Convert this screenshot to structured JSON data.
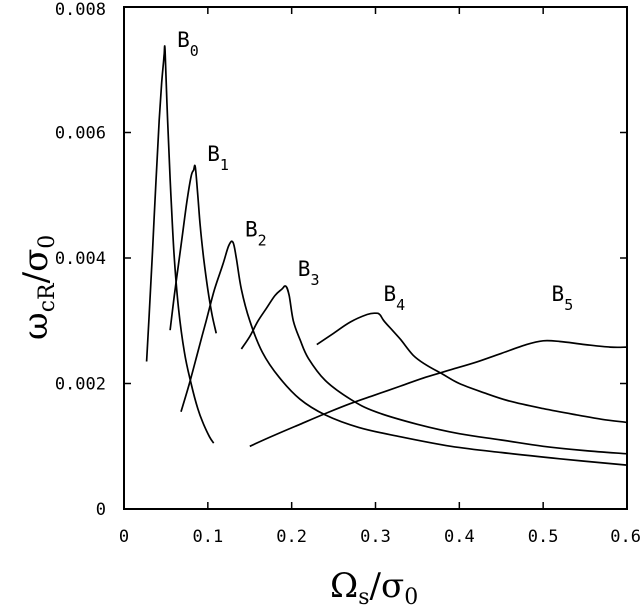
{
  "chart_data": {
    "type": "line",
    "title": "",
    "xlim": [
      0,
      0.6
    ],
    "ylim": [
      0,
      0.008
    ],
    "x_ticks": [
      "0",
      "0.1",
      "0.2",
      "0.3",
      "0.4",
      "0.5",
      "0.6"
    ],
    "y_ticks": [
      "0",
      "0.002",
      "0.004",
      "0.006",
      "0.008"
    ],
    "grid": false,
    "legend": "none",
    "x_axis_label": {
      "main": "Ω",
      "sub1": "s",
      "slash": "/",
      "main2": "σ",
      "sub2": "0"
    },
    "y_axis_label": {
      "main": "ω",
      "sub1": "cR",
      "slash": "/",
      "main2": "σ",
      "sub2": "0"
    },
    "series": [
      {
        "label_main": "B",
        "label_sub": "0",
        "x": [
          0.027,
          0.03,
          0.034,
          0.038,
          0.042,
          0.045,
          0.047,
          0.048,
          0.049,
          0.052,
          0.056,
          0.06,
          0.065,
          0.072,
          0.08,
          0.088,
          0.095,
          0.102,
          0.107
        ],
        "y": [
          0.00235,
          0.0031,
          0.0041,
          0.0052,
          0.0062,
          0.0068,
          0.0071,
          0.00725,
          0.0073,
          0.0062,
          0.005,
          0.004,
          0.0032,
          0.0025,
          0.002,
          0.0016,
          0.00135,
          0.00115,
          0.00105
        ]
      },
      {
        "label_main": "B",
        "label_sub": "1",
        "x": [
          0.055,
          0.06,
          0.065,
          0.07,
          0.075,
          0.08,
          0.083,
          0.085,
          0.088,
          0.091,
          0.095,
          0.1,
          0.105,
          0.11
        ],
        "y": [
          0.00285,
          0.0034,
          0.0039,
          0.0044,
          0.0049,
          0.0053,
          0.0054,
          0.00545,
          0.005,
          0.0045,
          0.004,
          0.0035,
          0.0031,
          0.0028
        ]
      },
      {
        "label_main": "B",
        "label_sub": "2",
        "x": [
          0.068,
          0.078,
          0.088,
          0.098,
          0.108,
          0.118,
          0.125,
          0.13,
          0.134,
          0.14,
          0.15,
          0.165,
          0.185,
          0.21,
          0.24,
          0.28,
          0.33,
          0.39,
          0.45,
          0.52,
          0.6
        ],
        "y": [
          0.00155,
          0.002,
          0.0025,
          0.003,
          0.0035,
          0.0039,
          0.0042,
          0.00425,
          0.004,
          0.0035,
          0.003,
          0.0025,
          0.0021,
          0.00175,
          0.0015,
          0.0013,
          0.00115,
          0.001,
          0.0009,
          0.0008,
          0.0007
        ]
      },
      {
        "label_main": "B",
        "label_sub": "3",
        "x": [
          0.14,
          0.15,
          0.16,
          0.17,
          0.18,
          0.188,
          0.193,
          0.197,
          0.202,
          0.21,
          0.22,
          0.24,
          0.27,
          0.3,
          0.35,
          0.4,
          0.45,
          0.5,
          0.55,
          0.6
        ],
        "y": [
          0.00255,
          0.00275,
          0.003,
          0.0032,
          0.0034,
          0.0035,
          0.00355,
          0.0034,
          0.003,
          0.0027,
          0.0024,
          0.00205,
          0.00175,
          0.00155,
          0.00135,
          0.0012,
          0.0011,
          0.001,
          0.00093,
          0.00088
        ]
      },
      {
        "label_main": "B",
        "label_sub": "4",
        "x": [
          0.23,
          0.25,
          0.27,
          0.29,
          0.3,
          0.305,
          0.31,
          0.32,
          0.33,
          0.345,
          0.36,
          0.38,
          0.4,
          0.43,
          0.46,
          0.5,
          0.54,
          0.57,
          0.6
        ],
        "y": [
          0.00262,
          0.0028,
          0.00298,
          0.0031,
          0.00312,
          0.0031,
          0.003,
          0.00285,
          0.0027,
          0.00245,
          0.0023,
          0.00215,
          0.002,
          0.00185,
          0.00172,
          0.0016,
          0.0015,
          0.00143,
          0.00138
        ]
      },
      {
        "label_main": "B",
        "label_sub": "5",
        "x": [
          0.15,
          0.18,
          0.21,
          0.24,
          0.27,
          0.3,
          0.33,
          0.36,
          0.39,
          0.42,
          0.45,
          0.48,
          0.5,
          0.52,
          0.55,
          0.58,
          0.6
        ],
        "y": [
          0.001,
          0.00118,
          0.00135,
          0.00152,
          0.00168,
          0.00182,
          0.00196,
          0.0021,
          0.00222,
          0.00234,
          0.00248,
          0.00262,
          0.00268,
          0.00267,
          0.00262,
          0.00258,
          0.00258
        ]
      }
    ]
  }
}
